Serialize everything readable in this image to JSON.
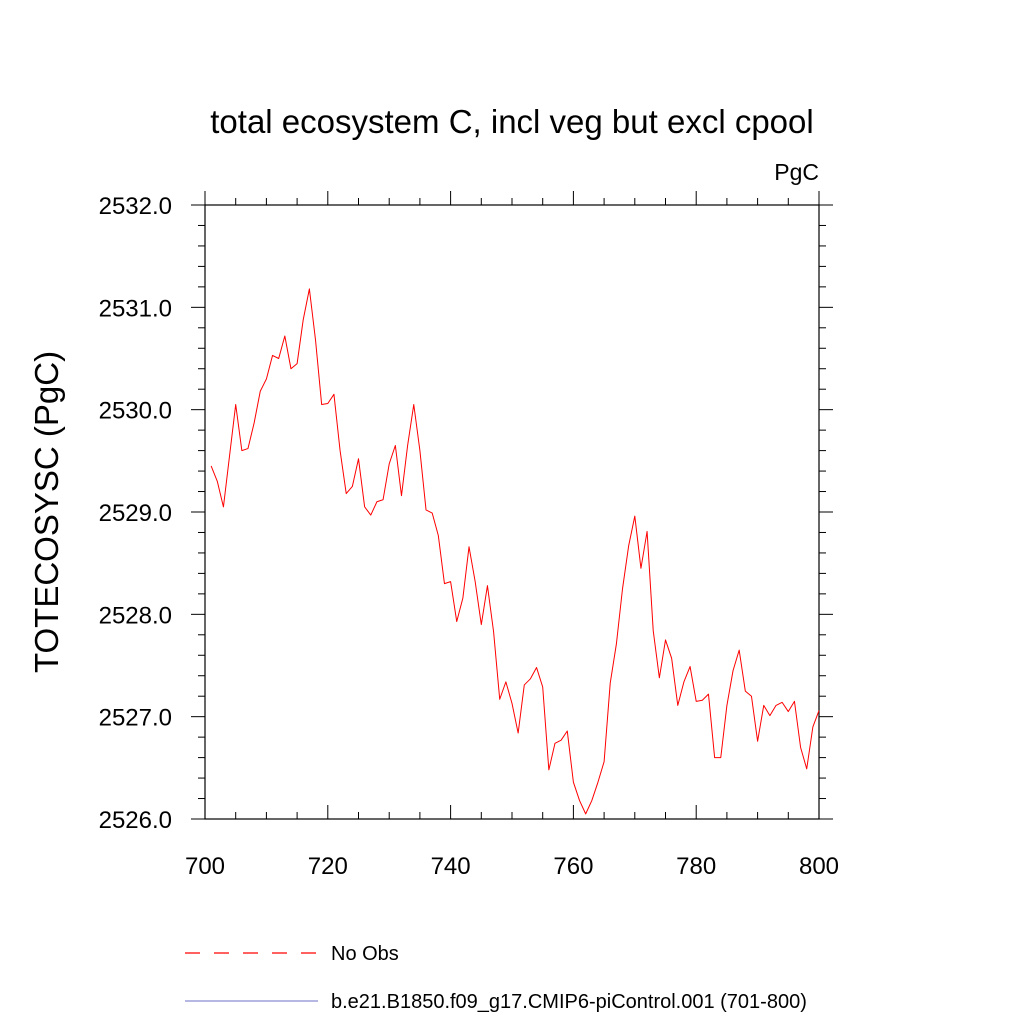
{
  "chart_data": {
    "type": "line",
    "title": "total ecosystem C, incl veg but excl cpool",
    "units_label": "PgC",
    "ylabel": "TOTECOSYSC  (PgC)",
    "xlabel": "",
    "xlim": [
      700,
      800
    ],
    "ylim": [
      2526.0,
      2532.0
    ],
    "x_ticks": [
      700,
      720,
      740,
      760,
      780,
      800
    ],
    "x_tick_labels": [
      "700",
      "720",
      "740",
      "760",
      "780",
      "800"
    ],
    "y_ticks": [
      2526.0,
      2527.0,
      2528.0,
      2529.0,
      2530.0,
      2531.0,
      2532.0
    ],
    "y_tick_labels": [
      "2526.0",
      "2527.0",
      "2528.0",
      "2529.0",
      "2530.0",
      "2531.0",
      "2532.0"
    ],
    "grid": false,
    "legend_position": "bottom-left",
    "series": [
      {
        "name": "b.e21.B1850.f09_g17.CMIP6-piControl.001 (701-800)",
        "color": "#ff0000",
        "style": "solid",
        "x": [
          701,
          702,
          703,
          704,
          705,
          706,
          707,
          708,
          709,
          710,
          711,
          712,
          713,
          714,
          715,
          716,
          717,
          718,
          719,
          720,
          721,
          722,
          723,
          724,
          725,
          726,
          727,
          728,
          729,
          730,
          731,
          732,
          733,
          734,
          735,
          736,
          737,
          738,
          739,
          740,
          741,
          742,
          743,
          744,
          745,
          746,
          747,
          748,
          749,
          750,
          751,
          752,
          753,
          754,
          755,
          756,
          757,
          758,
          759,
          760,
          761,
          762,
          763,
          764,
          765,
          766,
          767,
          768,
          769,
          770,
          771,
          772,
          773,
          774,
          775,
          776,
          777,
          778,
          779,
          780,
          781,
          782,
          783,
          784,
          785,
          786,
          787,
          788,
          789,
          790,
          791,
          792,
          793,
          794,
          795,
          796,
          797,
          798,
          799,
          800
        ],
        "values": [
          2529.45,
          2529.3,
          2529.05,
          2529.55,
          2530.05,
          2529.6,
          2529.62,
          2529.87,
          2530.18,
          2530.3,
          2530.53,
          2530.5,
          2530.72,
          2530.4,
          2530.45,
          2530.88,
          2531.18,
          2530.68,
          2530.05,
          2530.06,
          2530.15,
          2529.6,
          2529.18,
          2529.25,
          2529.52,
          2529.05,
          2528.97,
          2529.1,
          2529.12,
          2529.47,
          2529.65,
          2529.16,
          2529.65,
          2530.05,
          2529.6,
          2529.02,
          2528.99,
          2528.77,
          2528.3,
          2528.32,
          2527.93,
          2528.16,
          2528.66,
          2528.32,
          2527.9,
          2528.28,
          2527.83,
          2527.17,
          2527.34,
          2527.13,
          2526.84,
          2527.31,
          2527.37,
          2527.48,
          2527.29,
          2526.48,
          2526.74,
          2526.77,
          2526.86,
          2526.36,
          2526.18,
          2526.05,
          2526.18,
          2526.36,
          2526.56,
          2527.33,
          2527.71,
          2528.25,
          2528.67,
          2528.96,
          2528.45,
          2528.81,
          2527.84,
          2527.38,
          2527.75,
          2527.57,
          2527.11,
          2527.34,
          2527.49,
          2527.15,
          2527.16,
          2527.22,
          2526.6,
          2526.6,
          2527.11,
          2527.45,
          2527.65,
          2527.25,
          2527.2,
          2526.76,
          2527.11,
          2527.01,
          2527.11,
          2527.14,
          2527.05,
          2527.15,
          2526.7,
          2526.49,
          2526.9,
          2527.06
        ]
      },
      {
        "name": "No Obs",
        "color": "#6f6fc8",
        "style": "dashed",
        "x": [],
        "values": []
      }
    ]
  }
}
